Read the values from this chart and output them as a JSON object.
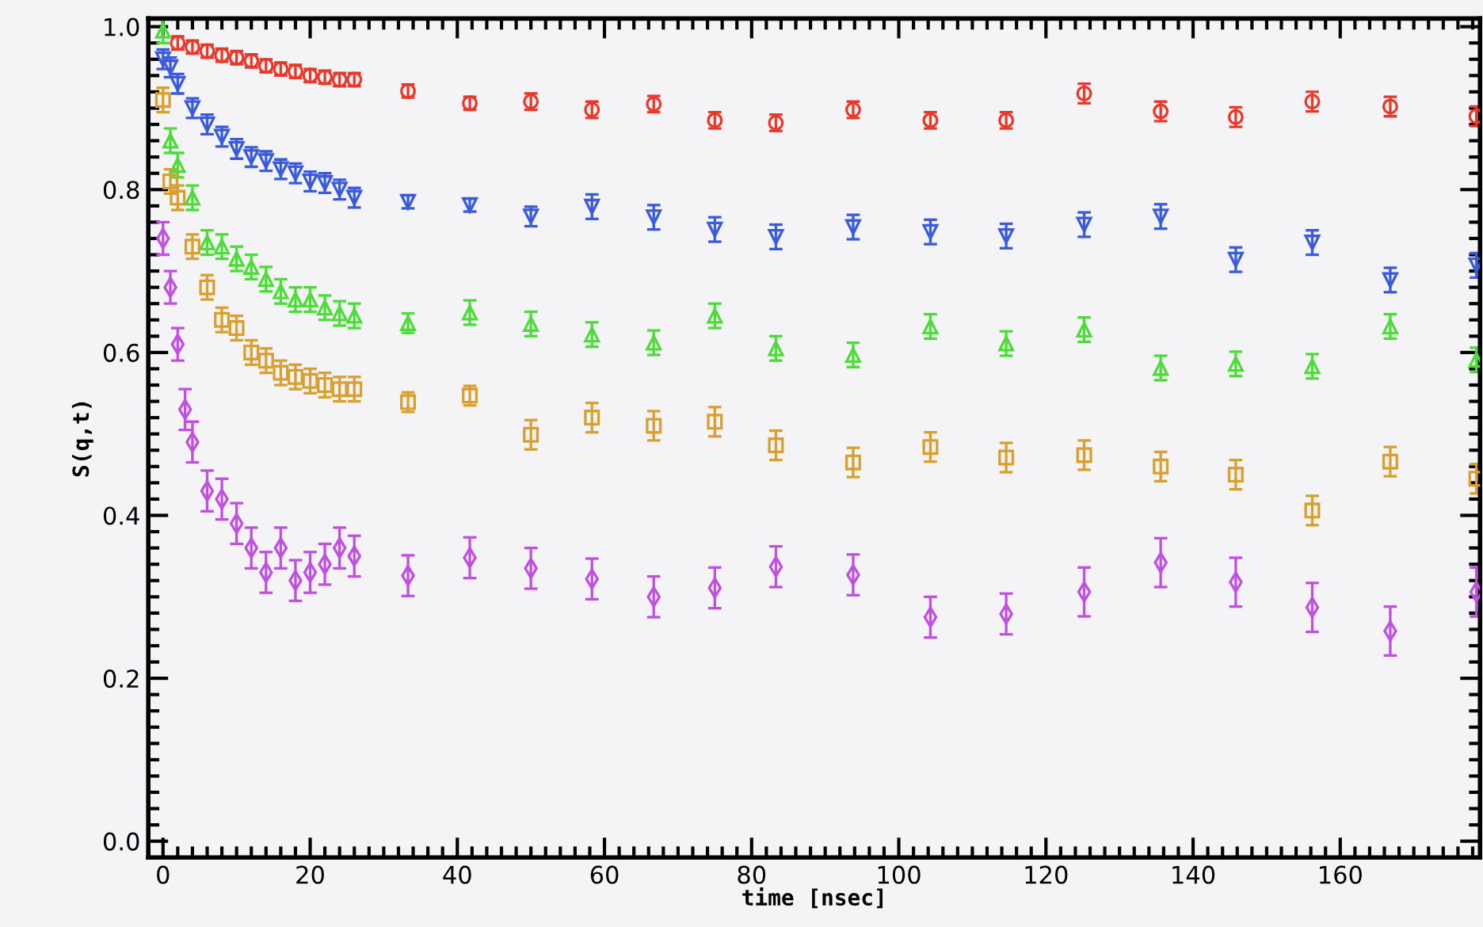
{
  "chart_data": {
    "type": "scatter",
    "xlabel": "time [nsec]",
    "ylabel": "S(q,t)",
    "xlim": [
      -2,
      179
    ],
    "ylim": [
      -0.02,
      1.01
    ],
    "xticks": [
      0,
      20,
      40,
      60,
      80,
      100,
      120,
      140,
      160
    ],
    "yticks": [
      {
        "value": 0,
        "label": "0.0"
      },
      0.2,
      0.4,
      0.6,
      0.8,
      {
        "value": 1,
        "label": "1.0"
      }
    ],
    "grid": false,
    "series": [
      {
        "color": "#e8392a",
        "marker": "circle",
        "x": [
          2,
          4,
          6,
          8,
          10,
          12,
          14,
          16,
          18,
          20,
          22,
          24,
          26,
          33.3,
          41.7,
          50,
          58.3,
          66.7,
          75,
          83.3,
          93.8,
          104.3,
          114.6,
          125.2,
          135.6,
          145.8,
          156.2,
          166.8,
          178.5
        ],
        "values": [
          0.98,
          0.975,
          0.97,
          0.965,
          0.962,
          0.958,
          0.952,
          0.948,
          0.945,
          0.94,
          0.938,
          0.935,
          0.935,
          0.921,
          0.906,
          0.908,
          0.898,
          0.905,
          0.885,
          0.882,
          0.898,
          0.885,
          0.885,
          0.918,
          0.896,
          0.889,
          0.908,
          0.902,
          0.89
        ],
        "errors": [
          0.008,
          0.008,
          0.008,
          0.008,
          0.008,
          0.008,
          0.008,
          0.008,
          0.008,
          0.008,
          0.008,
          0.008,
          0.008,
          0.008,
          0.008,
          0.01,
          0.01,
          0.01,
          0.01,
          0.01,
          0.01,
          0.01,
          0.01,
          0.012,
          0.012,
          0.012,
          0.012,
          0.012,
          0.012
        ]
      },
      {
        "color": "#3b5bdb",
        "marker": "triangle_down",
        "x": [
          0,
          1,
          2,
          4,
          6,
          8,
          10,
          12,
          14,
          16,
          18,
          20,
          22,
          24,
          26,
          33.3,
          41.7,
          50,
          58.3,
          66.7,
          75,
          83.3,
          93.8,
          104.3,
          114.6,
          125.2,
          135.6,
          145.8,
          156.2,
          166.8,
          178.5
        ],
        "values": [
          0.96,
          0.95,
          0.93,
          0.9,
          0.88,
          0.865,
          0.85,
          0.84,
          0.835,
          0.825,
          0.82,
          0.81,
          0.808,
          0.8,
          0.79,
          0.785,
          0.781,
          0.767,
          0.779,
          0.766,
          0.751,
          0.742,
          0.754,
          0.748,
          0.743,
          0.757,
          0.767,
          0.714,
          0.735,
          0.689,
          0.707
        ],
        "errors": [
          0.012,
          0.012,
          0.012,
          0.012,
          0.012,
          0.012,
          0.012,
          0.012,
          0.012,
          0.012,
          0.012,
          0.012,
          0.012,
          0.012,
          0.012,
          0.008,
          0.008,
          0.012,
          0.015,
          0.015,
          0.015,
          0.015,
          0.015,
          0.015,
          0.015,
          0.015,
          0.015,
          0.015,
          0.015,
          0.015,
          0.015
        ]
      },
      {
        "color": "#4ddc3a",
        "marker": "triangle",
        "x": [
          0,
          1,
          2,
          4,
          6,
          8,
          10,
          12,
          14,
          16,
          18,
          20,
          22,
          24,
          26,
          33.3,
          41.7,
          50,
          58.3,
          66.7,
          75,
          83.3,
          93.8,
          104.3,
          114.6,
          125.2,
          135.6,
          145.8,
          156.2,
          166.8,
          178.5
        ],
        "values": [
          0.995,
          0.86,
          0.83,
          0.79,
          0.735,
          0.73,
          0.715,
          0.705,
          0.69,
          0.675,
          0.665,
          0.665,
          0.655,
          0.648,
          0.645,
          0.636,
          0.649,
          0.635,
          0.622,
          0.612,
          0.645,
          0.605,
          0.597,
          0.632,
          0.611,
          0.628,
          0.581,
          0.586,
          0.583,
          0.632,
          0.591
        ],
        "errors": [
          0.015,
          0.015,
          0.015,
          0.015,
          0.015,
          0.015,
          0.015,
          0.015,
          0.015,
          0.015,
          0.015,
          0.015,
          0.015,
          0.015,
          0.015,
          0.012,
          0.015,
          0.015,
          0.015,
          0.015,
          0.015,
          0.015,
          0.015,
          0.015,
          0.015,
          0.015,
          0.015,
          0.015,
          0.015,
          0.015,
          0.015
        ]
      },
      {
        "color": "#d9a030",
        "marker": "square",
        "x": [
          0,
          1,
          2,
          4,
          6,
          8,
          10,
          12,
          14,
          16,
          18,
          20,
          22,
          24,
          26,
          33.3,
          41.7,
          50,
          58.3,
          66.7,
          75,
          83.3,
          93.8,
          104.3,
          114.6,
          125.2,
          135.6,
          145.8,
          156.2,
          166.8,
          178.5
        ],
        "values": [
          0.91,
          0.81,
          0.79,
          0.73,
          0.68,
          0.64,
          0.63,
          0.6,
          0.59,
          0.575,
          0.57,
          0.565,
          0.56,
          0.555,
          0.555,
          0.539,
          0.547,
          0.499,
          0.52,
          0.51,
          0.515,
          0.486,
          0.465,
          0.484,
          0.471,
          0.474,
          0.46,
          0.45,
          0.406,
          0.466,
          0.445
        ],
        "errors": [
          0.015,
          0.015,
          0.015,
          0.015,
          0.015,
          0.015,
          0.015,
          0.015,
          0.015,
          0.015,
          0.015,
          0.015,
          0.015,
          0.015,
          0.015,
          0.012,
          0.012,
          0.018,
          0.018,
          0.018,
          0.018,
          0.018,
          0.018,
          0.018,
          0.018,
          0.018,
          0.018,
          0.018,
          0.018,
          0.018,
          0.018
        ]
      },
      {
        "color": "#c050e0",
        "marker": "diamond",
        "x": [
          0,
          1,
          2,
          3,
          4,
          6,
          8,
          10,
          12,
          14,
          16,
          18,
          20,
          22,
          24,
          26,
          33.3,
          41.7,
          50,
          58.3,
          66.7,
          75,
          83.3,
          93.8,
          104.3,
          114.6,
          125.2,
          135.6,
          145.8,
          156.2,
          166.8,
          178.5
        ],
        "values": [
          0.74,
          0.68,
          0.61,
          0.53,
          0.49,
          0.43,
          0.42,
          0.39,
          0.36,
          0.33,
          0.36,
          0.32,
          0.33,
          0.34,
          0.36,
          0.35,
          0.326,
          0.348,
          0.335,
          0.322,
          0.3,
          0.311,
          0.337,
          0.327,
          0.275,
          0.279,
          0.306,
          0.342,
          0.318,
          0.287,
          0.258,
          0.306
        ],
        "errors": [
          0.02,
          0.02,
          0.02,
          0.025,
          0.025,
          0.025,
          0.025,
          0.025,
          0.025,
          0.025,
          0.025,
          0.025,
          0.025,
          0.025,
          0.025,
          0.025,
          0.025,
          0.025,
          0.025,
          0.025,
          0.025,
          0.025,
          0.025,
          0.025,
          0.025,
          0.025,
          0.03,
          0.03,
          0.03,
          0.03,
          0.03,
          0.03
        ]
      }
    ]
  }
}
